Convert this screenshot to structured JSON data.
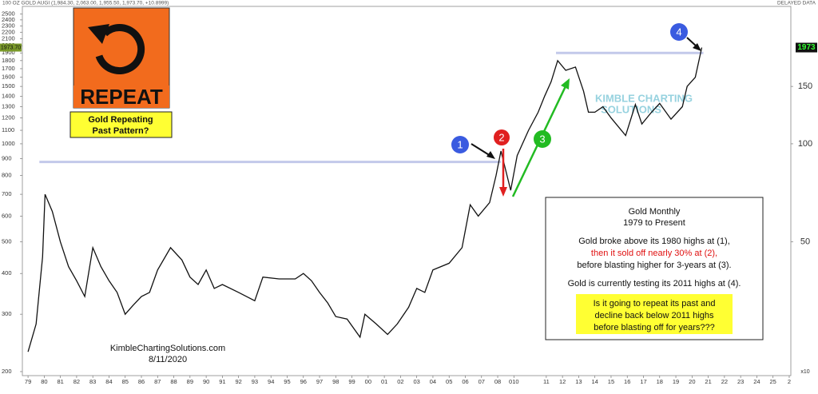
{
  "chart_data": {
    "type": "line",
    "title": "100 OZ GOLD AUGI (1,984.30, 2,063.00, 1,955.50, 1,973.70, +10.8999)",
    "subtitle": "DELAYED DATA",
    "x": [
      1979.0,
      1979.5,
      1979.9,
      1980.05,
      1980.5,
      1981.0,
      1981.5,
      1982.0,
      1982.5,
      1983.0,
      1983.5,
      1984.0,
      1984.5,
      1985.0,
      1985.5,
      1986.0,
      1986.5,
      1987.0,
      1987.8,
      1988.5,
      1989.0,
      1989.5,
      1990.0,
      1990.5,
      1991.0,
      1992.0,
      1993.0,
      1993.5,
      1994.5,
      1995.5,
      1996.0,
      1996.5,
      1997.0,
      1997.5,
      1998.0,
      1998.7,
      1999.5,
      1999.8,
      2000.5,
      2001.2,
      2001.8,
      2002.5,
      2003.0,
      2003.5,
      2004.0,
      2005.0,
      2005.8,
      2006.3,
      2006.8,
      2007.5,
      2007.9,
      2008.2,
      2008.8,
      2009.2,
      2009.9,
      2010.5,
      2010.9,
      2011.3,
      2011.7,
      2012.2,
      2012.8,
      2013.3,
      2013.6,
      2014.0,
      2014.5,
      2015.0,
      2015.9,
      2016.5,
      2016.9,
      2017.5,
      2018.0,
      2018.7,
      2019.4,
      2019.7,
      2020.2,
      2020.6
    ],
    "series": [
      {
        "color": "#111111",
        "values": [
          230,
          280,
          450,
          700,
          620,
          500,
          420,
          380,
          340,
          480,
          420,
          380,
          350,
          300,
          320,
          340,
          350,
          410,
          480,
          440,
          390,
          370,
          410,
          360,
          370,
          350,
          330,
          390,
          385,
          385,
          400,
          380,
          350,
          325,
          295,
          290,
          255,
          300,
          280,
          260,
          280,
          315,
          360,
          350,
          410,
          430,
          480,
          650,
          600,
          660,
          800,
          950,
          720,
          920,
          1100,
          1250,
          1400,
          1550,
          1800,
          1680,
          1720,
          1450,
          1250,
          1250,
          1300,
          1200,
          1060,
          1320,
          1150,
          1250,
          1330,
          1190,
          1300,
          1500,
          1600,
          1973.7
        ]
      }
    ],
    "xlim": [
      1978.65,
      2026.1
    ],
    "xticks": [
      {
        "value": 1979,
        "label": "79"
      },
      {
        "value": 1980,
        "label": "80"
      },
      {
        "value": 1981,
        "label": "81"
      },
      {
        "value": 1982,
        "label": "82"
      },
      {
        "value": 1983,
        "label": "83"
      },
      {
        "value": 1984,
        "label": "84"
      },
      {
        "value": 1985,
        "label": "85"
      },
      {
        "value": 1986,
        "label": "86"
      },
      {
        "value": 1987,
        "label": "87"
      },
      {
        "value": 1988,
        "label": "88"
      },
      {
        "value": 1989,
        "label": "89"
      },
      {
        "value": 1990,
        "label": "90"
      },
      {
        "value": 1991,
        "label": "91"
      },
      {
        "value": 1992,
        "label": "92"
      },
      {
        "value": 1993,
        "label": "93"
      },
      {
        "value": 1994,
        "label": "94"
      },
      {
        "value": 1995,
        "label": "95"
      },
      {
        "value": 1996,
        "label": "96"
      },
      {
        "value": 1997,
        "label": "97"
      },
      {
        "value": 1998,
        "label": "98"
      },
      {
        "value": 1999,
        "label": "99"
      },
      {
        "value": 2000,
        "label": "00"
      },
      {
        "value": 2001,
        "label": "01"
      },
      {
        "value": 2002,
        "label": "02"
      },
      {
        "value": 2003,
        "label": "03"
      },
      {
        "value": 2004,
        "label": "04"
      },
      {
        "value": 2005,
        "label": "05"
      },
      {
        "value": 2006,
        "label": "06"
      },
      {
        "value": 2007,
        "label": "07"
      },
      {
        "value": 2008,
        "label": "08"
      },
      {
        "value": 2009,
        "label": "010"
      },
      {
        "value": 2011,
        "label": "11"
      },
      {
        "value": 2012,
        "label": "12"
      },
      {
        "value": 2013,
        "label": "13"
      },
      {
        "value": 2014,
        "label": "14"
      },
      {
        "value": 2015,
        "label": "15"
      },
      {
        "value": 2016,
        "label": "16"
      },
      {
        "value": 2017,
        "label": "17"
      },
      {
        "value": 2018,
        "label": "18"
      },
      {
        "value": 2019,
        "label": "19"
      },
      {
        "value": 2020,
        "label": "20"
      },
      {
        "value": 2021,
        "label": "21"
      },
      {
        "value": 2022,
        "label": "22"
      },
      {
        "value": 2023,
        "label": "23"
      },
      {
        "value": 2024,
        "label": "24"
      },
      {
        "value": 2025,
        "label": "25"
      },
      {
        "value": 2026,
        "label": "2"
      }
    ],
    "ylim": [
      194.4,
      2640
    ],
    "yticks": [
      200,
      300,
      400,
      500,
      600,
      700,
      800,
      900,
      1000,
      1100,
      1200,
      1300,
      1400,
      1500,
      1600,
      1700,
      1800,
      1900,
      2000,
      2100,
      2200,
      2300,
      2400,
      2500
    ],
    "y2lim": [
      19.44,
      264
    ],
    "y2ticks": [
      50,
      100,
      150
    ],
    "y2_multiplier_label": "x10",
    "log_scale": true,
    "grid": false,
    "price_tag": "1973.70",
    "y2_price_tag": "1973",
    "reference_lines": [
      {
        "value": 880,
        "x": [
          1979.7,
          2008.2
        ]
      },
      {
        "value": 1900,
        "x": [
          2011.6,
          2020.7
        ]
      }
    ],
    "reference_line_color": "#c3c9ea",
    "annotations": {
      "markers": [
        "1",
        "2",
        "3",
        "4"
      ],
      "sign_text": "REPEAT",
      "question": [
        "Gold Repeating",
        "Past Pattern?"
      ],
      "box_lines": [
        "Gold Monthly",
        "1979 to Present",
        "Gold broke above its 1980 highs at (1),",
        "then it sold off nearly 30% at (2),",
        "before blasting higher for 3-years at (3).",
        "Gold is currently testing its 2011 highs at (4)."
      ],
      "box_highlight": [
        "Is it going to repeat its past and",
        "decline back below 2011 highs",
        "before blasting off for years???"
      ],
      "watermark": [
        "KIMBLE CHARTING",
        "SOLUTIONS"
      ],
      "website": "KimbleChartingSolutions.com",
      "date": "8/11/2020"
    }
  }
}
